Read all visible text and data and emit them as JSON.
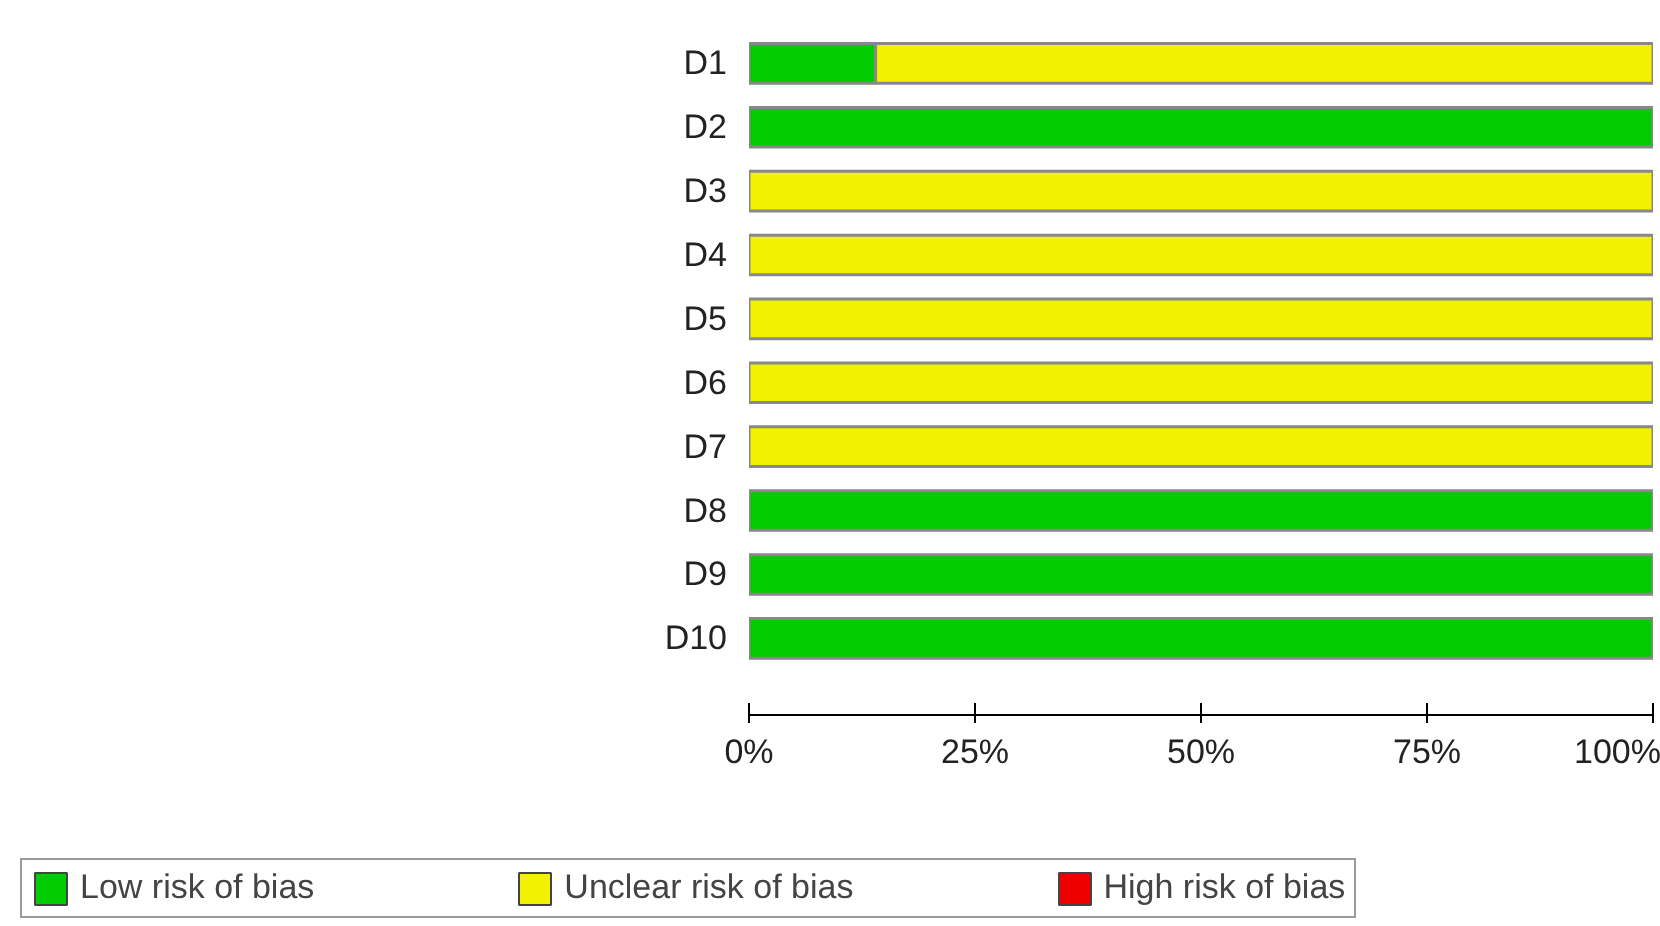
{
  "chart_data": {
    "type": "bar",
    "orientation": "horizontal",
    "stacked": true,
    "categories": [
      "D1",
      "D2",
      "D3",
      "D4",
      "D5",
      "D6",
      "D7",
      "D8",
      "D9",
      "D10"
    ],
    "series": [
      {
        "name": "Low risk of bias",
        "color": "#00cc00",
        "values": [
          14,
          100,
          0,
          0,
          0,
          0,
          0,
          100,
          100,
          100
        ]
      },
      {
        "name": "Unclear risk of bias",
        "color": "#f2f200",
        "values": [
          86,
          0,
          100,
          100,
          100,
          100,
          100,
          0,
          0,
          0
        ]
      },
      {
        "name": "High risk of bias",
        "color": "#ee0000",
        "values": [
          0,
          0,
          0,
          0,
          0,
          0,
          0,
          0,
          0,
          0
        ]
      }
    ],
    "xlim": [
      0,
      100
    ],
    "xticks": [
      {
        "value": 0,
        "label": "0%"
      },
      {
        "value": 25,
        "label": "25%"
      },
      {
        "value": 50,
        "label": "50%"
      },
      {
        "value": 75,
        "label": "75%"
      },
      {
        "value": 100,
        "label": "100%"
      }
    ],
    "grid": false,
    "legend": "bottom"
  }
}
